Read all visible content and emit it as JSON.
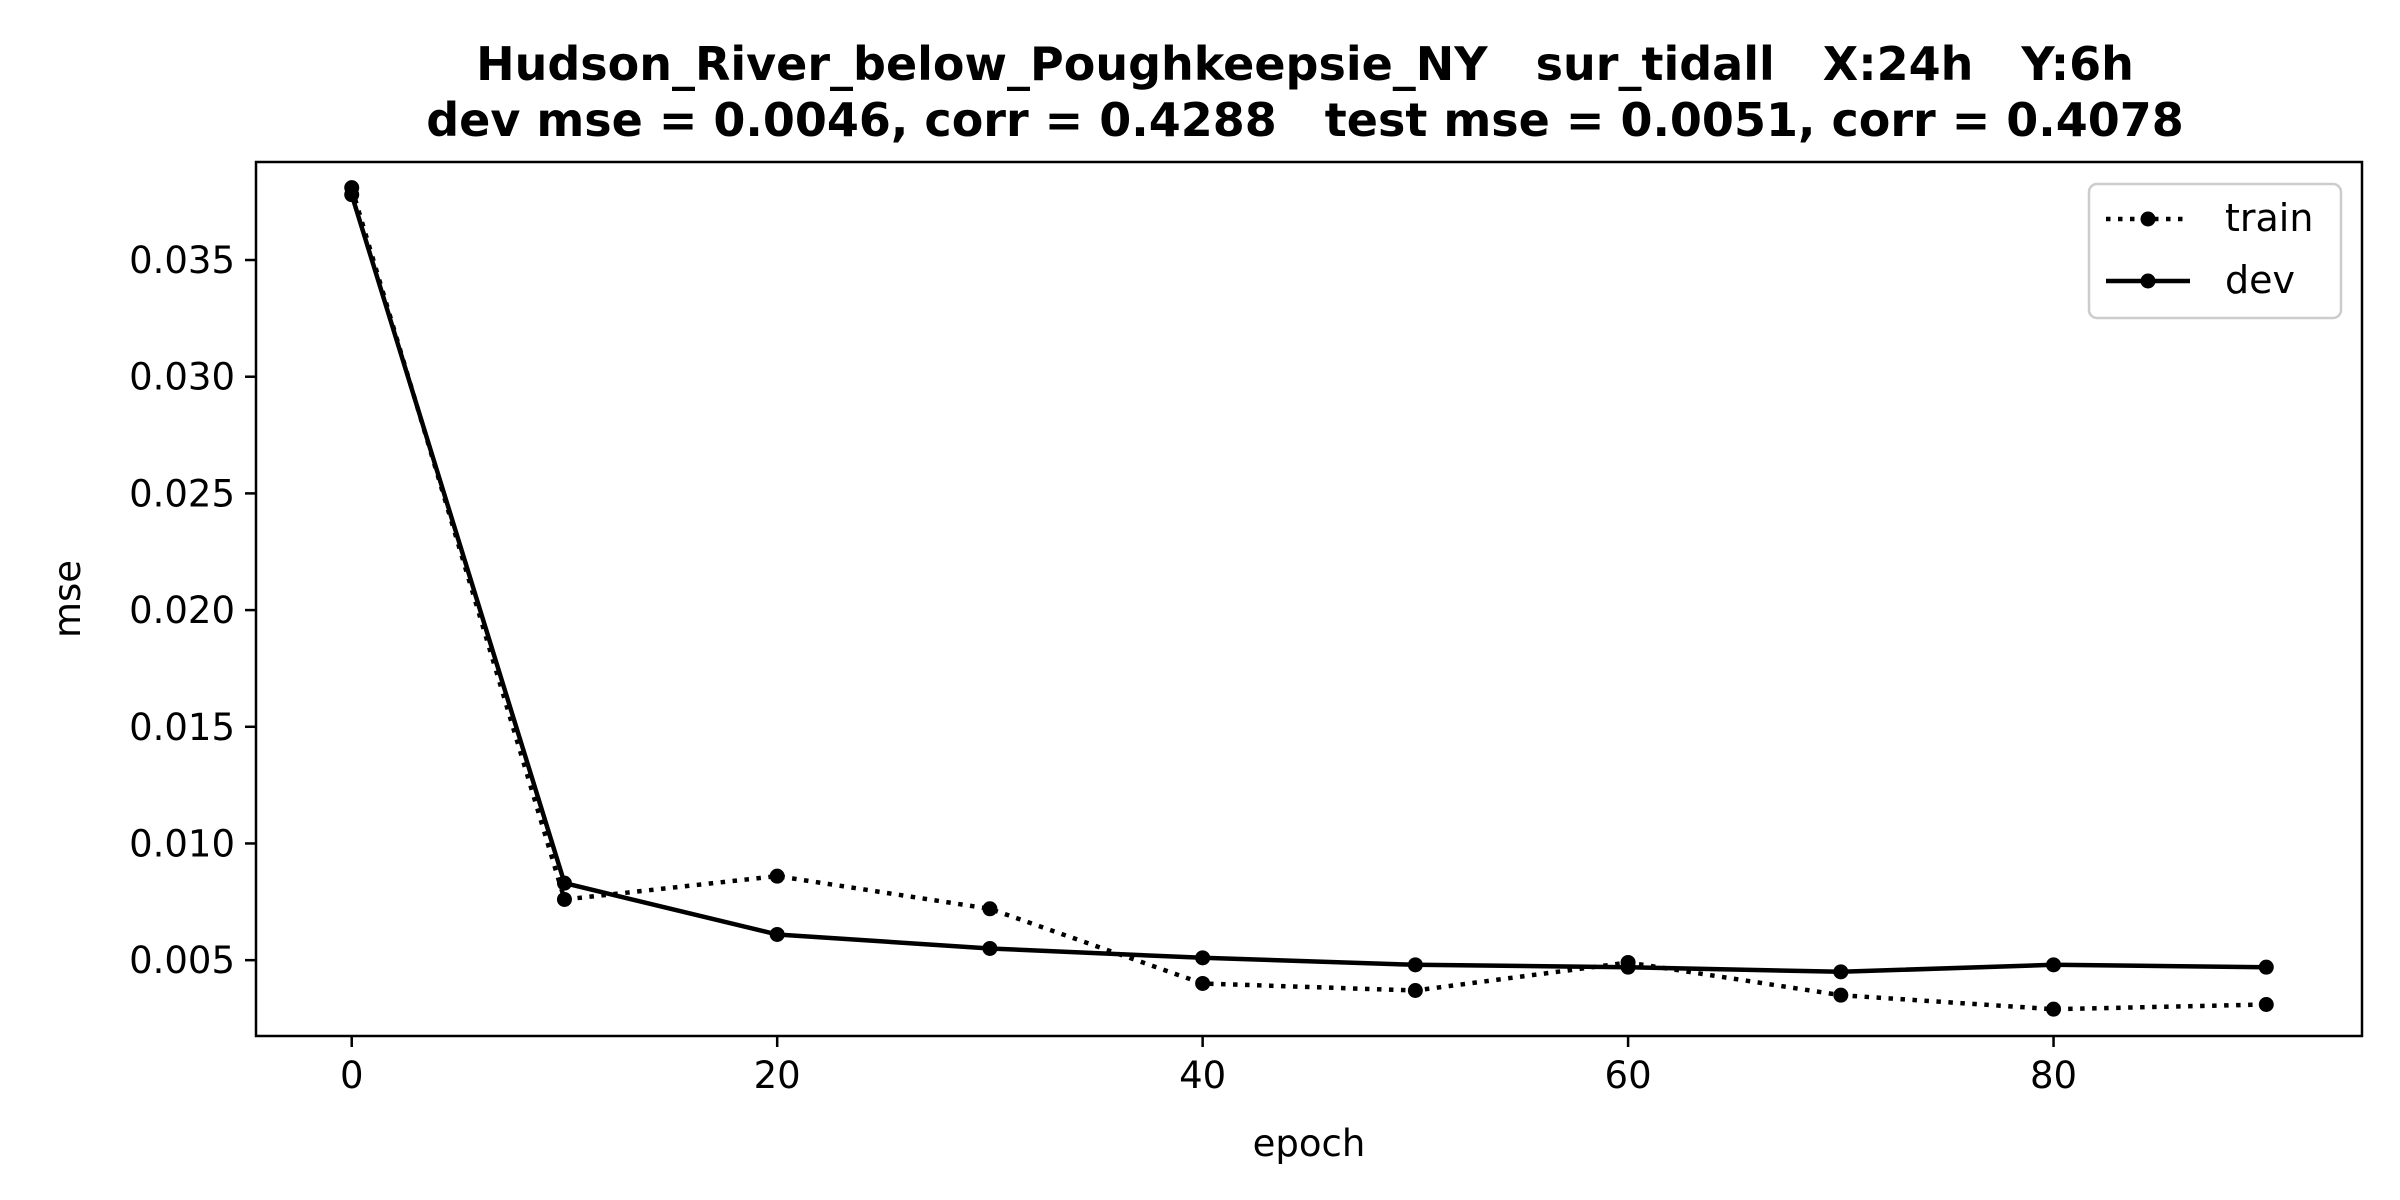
{
  "chart_data": {
    "type": "line",
    "title": "Hudson_River_below_Poughkeepsie_NY   sur_tidall   X:24h   Y:6h",
    "subtitle": "dev mse = 0.0046, corr = 0.4288   test mse = 0.0051, corr = 0.4078",
    "xlabel": "epoch",
    "ylabel": "mse",
    "xlim": [
      -4.5,
      94.5
    ],
    "ylim": [
      0.00175,
      0.0392
    ],
    "x_ticks": [
      0,
      20,
      40,
      60,
      80
    ],
    "x_tick_labels": [
      "0",
      "20",
      "40",
      "60",
      "80"
    ],
    "y_ticks": [
      0.005,
      0.01,
      0.015,
      0.02,
      0.025,
      0.03,
      0.035
    ],
    "y_tick_labels": [
      "0.005",
      "0.010",
      "0.015",
      "0.020",
      "0.025",
      "0.030",
      "0.035"
    ],
    "grid": false,
    "legend_position": "top-right",
    "x": [
      0,
      10,
      20,
      30,
      40,
      50,
      60,
      70,
      80,
      90
    ],
    "series": [
      {
        "name": "train",
        "style": "dotted",
        "color": "#000000",
        "values": [
          0.0381,
          0.0076,
          0.0086,
          0.0072,
          0.004,
          0.0037,
          0.0049,
          0.0035,
          0.0029,
          0.0031
        ]
      },
      {
        "name": "dev",
        "style": "solid",
        "color": "#000000",
        "values": [
          0.0378,
          0.0083,
          0.0061,
          0.0055,
          0.0051,
          0.0048,
          0.0047,
          0.0045,
          0.0048,
          0.0047
        ]
      }
    ]
  }
}
